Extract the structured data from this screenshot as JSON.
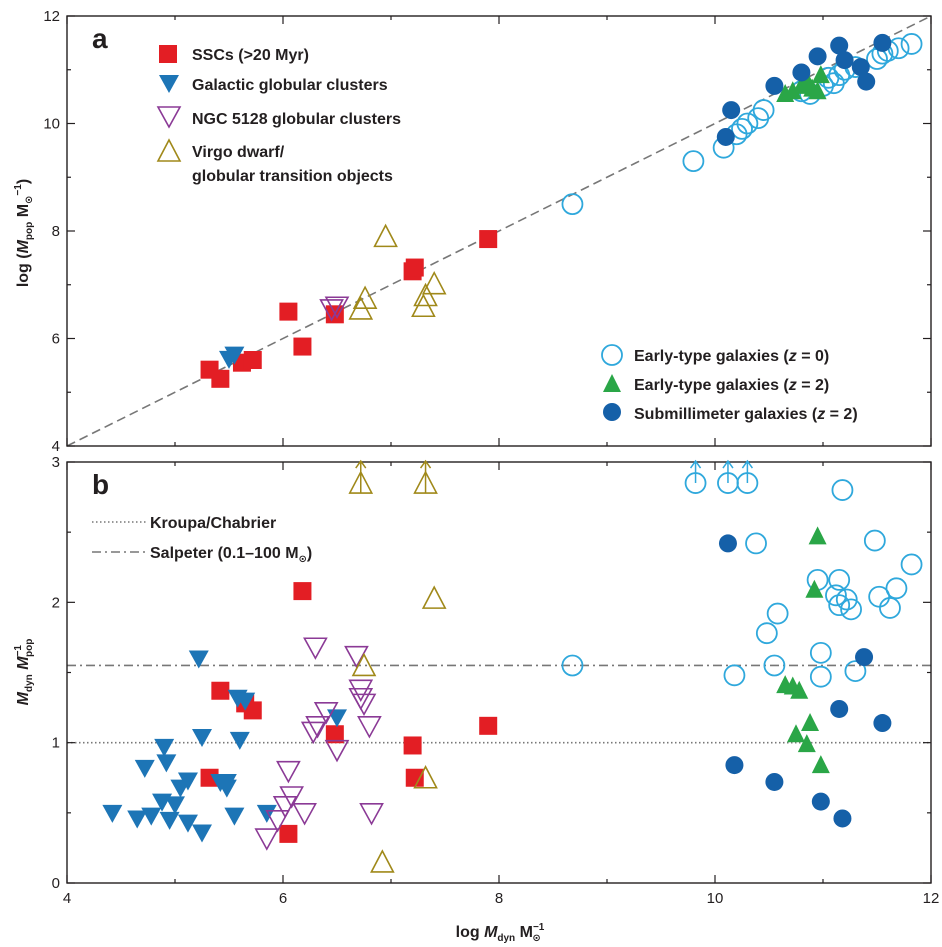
{
  "colors": {
    "ssc": "#e31e24",
    "galactic_gc": "#1d75b6",
    "ngc5128_gc": "#8b3a96",
    "virgo": "#a0891a",
    "early_z0": "#2fa8dc",
    "early_z2": "#2aa647",
    "submm": "#1560a8",
    "axis": "#231f20",
    "guide": "#777777"
  },
  "chart_data": [
    {
      "panel": "a",
      "type": "scatter",
      "xlim": [
        4,
        12
      ],
      "ylim": [
        4,
        12
      ],
      "x_ticks": [
        "4",
        "6",
        "8",
        "10",
        "12"
      ],
      "y_ticks": [
        "4",
        "6",
        "8",
        "10",
        "12"
      ],
      "reference_line": {
        "style": "dashed",
        "from": [
          4,
          4
        ],
        "to": [
          12,
          12
        ]
      },
      "legend_left": [
        {
          "id": "ssc",
          "label": "SSCs (>20 Myr)"
        },
        {
          "id": "galactic_gc",
          "label": "Galactic globular clusters"
        },
        {
          "id": "ngc5128_gc",
          "label": "NGC 5128 globular clusters"
        },
        {
          "id": "virgo",
          "label": "Virgo dwarf/",
          "label2": "globular transition objects"
        }
      ],
      "legend_right": [
        {
          "id": "early_z0",
          "label": "Early-type galaxies (",
          "label_z": "z",
          "label_end": " = 0)"
        },
        {
          "id": "early_z2",
          "label": "Early-type galaxies (",
          "label_z": "z",
          "label_end": " = 2)"
        },
        {
          "id": "submm",
          "label": "Submillimeter galaxies (",
          "label_z": "z",
          "label_end": " = 2)"
        }
      ],
      "series": [
        {
          "id": "ssc",
          "marker": "square",
          "points": [
            [
              5.32,
              5.42
            ],
            [
              5.42,
              5.25
            ],
            [
              5.62,
              5.55
            ],
            [
              5.72,
              5.6
            ],
            [
              6.05,
              6.5
            ],
            [
              6.18,
              5.85
            ],
            [
              6.48,
              6.45
            ],
            [
              7.2,
              7.25
            ],
            [
              7.22,
              7.32
            ],
            [
              7.9,
              7.85
            ]
          ]
        },
        {
          "id": "galactic_gc",
          "marker": "triangle-down",
          "points": [
            [
              5.5,
              5.62
            ],
            [
              5.55,
              5.7
            ]
          ]
        },
        {
          "id": "ngc5128_gc",
          "marker": "triangle-down-open",
          "points": [
            [
              6.45,
              6.55
            ],
            [
              6.5,
              6.6
            ]
          ]
        },
        {
          "id": "virgo",
          "marker": "triangle-up-open",
          "points": [
            [
              6.72,
              6.55
            ],
            [
              6.76,
              6.75
            ],
            [
              6.95,
              7.9
            ],
            [
              7.3,
              6.6
            ],
            [
              7.32,
              6.8
            ],
            [
              7.4,
              7.02
            ]
          ]
        },
        {
          "id": "early_z0",
          "marker": "circle-open",
          "points": [
            [
              8.68,
              8.5
            ],
            [
              9.8,
              9.3
            ],
            [
              10.08,
              9.55
            ],
            [
              10.2,
              9.8
            ],
            [
              10.25,
              9.9
            ],
            [
              10.3,
              10.0
            ],
            [
              10.4,
              10.1
            ],
            [
              10.45,
              10.25
            ],
            [
              10.8,
              10.6
            ],
            [
              10.88,
              10.55
            ],
            [
              11.0,
              10.7
            ],
            [
              11.05,
              10.85
            ],
            [
              11.1,
              10.75
            ],
            [
              11.15,
              10.9
            ],
            [
              11.2,
              11.0
            ],
            [
              11.3,
              11.05
            ],
            [
              11.5,
              11.2
            ],
            [
              11.55,
              11.3
            ],
            [
              11.6,
              11.35
            ],
            [
              11.7,
              11.4
            ],
            [
              11.82,
              11.48
            ]
          ]
        },
        {
          "id": "early_z2",
          "marker": "triangle-up",
          "points": [
            [
              10.65,
              10.55
            ],
            [
              10.72,
              10.6
            ],
            [
              10.8,
              10.7
            ],
            [
              10.85,
              10.8
            ],
            [
              10.9,
              10.65
            ],
            [
              10.95,
              10.6
            ],
            [
              10.98,
              10.9
            ]
          ]
        },
        {
          "id": "submm",
          "marker": "circle",
          "points": [
            [
              10.1,
              9.75
            ],
            [
              10.15,
              10.25
            ],
            [
              10.55,
              10.7
            ],
            [
              10.8,
              10.95
            ],
            [
              10.95,
              11.25
            ],
            [
              11.15,
              11.45
            ],
            [
              11.2,
              11.18
            ],
            [
              11.35,
              11.05
            ],
            [
              11.4,
              10.78
            ],
            [
              11.55,
              11.5
            ]
          ]
        }
      ]
    },
    {
      "panel": "b",
      "type": "scatter",
      "xlim": [
        4,
        12
      ],
      "ylim": [
        0,
        3
      ],
      "x_ticks": [
        "4",
        "6",
        "8",
        "10",
        "12"
      ],
      "y_ticks": [
        "0",
        "1",
        "2",
        "3"
      ],
      "reference_lines": [
        {
          "id": "kroupa",
          "label": "Kroupa/Chabrier",
          "style": "dotted",
          "y": 1.0
        },
        {
          "id": "salpeter",
          "label": "Salpeter (0.1–100 M",
          "label_suffix": ")",
          "style": "dashdot",
          "y": 1.55
        }
      ],
      "series": [
        {
          "id": "ssc",
          "marker": "square",
          "points": [
            [
              5.32,
              0.75
            ],
            [
              5.42,
              1.37
            ],
            [
              5.65,
              1.28
            ],
            [
              5.72,
              1.23
            ],
            [
              6.05,
              0.35
            ],
            [
              6.18,
              2.08
            ],
            [
              6.48,
              1.06
            ],
            [
              7.2,
              0.98
            ],
            [
              7.22,
              0.75
            ],
            [
              7.9,
              1.12
            ]
          ]
        },
        {
          "id": "galactic_gc",
          "marker": "triangle-down",
          "points": [
            [
              4.42,
              0.5
            ],
            [
              4.65,
              0.46
            ],
            [
              4.72,
              0.82
            ],
            [
              4.78,
              0.48
            ],
            [
              4.88,
              0.58
            ],
            [
              4.9,
              0.97
            ],
            [
              4.92,
              0.86
            ],
            [
              4.95,
              0.45
            ],
            [
              5.0,
              0.56
            ],
            [
              5.05,
              0.68
            ],
            [
              5.12,
              0.43
            ],
            [
              5.12,
              0.73
            ],
            [
              5.22,
              1.6
            ],
            [
              5.25,
              0.36
            ],
            [
              5.25,
              1.04
            ],
            [
              5.42,
              0.72
            ],
            [
              5.48,
              0.68
            ],
            [
              5.48,
              0.72
            ],
            [
              5.55,
              0.48
            ],
            [
              5.58,
              1.32
            ],
            [
              5.6,
              1.02
            ],
            [
              5.65,
              1.3
            ],
            [
              5.85,
              0.5
            ],
            [
              6.5,
              1.18
            ]
          ]
        },
        {
          "id": "ngc5128_gc",
          "marker": "triangle-down-open",
          "points": [
            [
              5.85,
              0.32
            ],
            [
              5.95,
              0.45
            ],
            [
              6.02,
              0.55
            ],
            [
              6.05,
              0.8
            ],
            [
              6.08,
              0.62
            ],
            [
              6.2,
              0.5
            ],
            [
              6.28,
              1.08
            ],
            [
              6.3,
              1.68
            ],
            [
              6.32,
              1.12
            ],
            [
              6.4,
              1.22
            ],
            [
              6.5,
              0.95
            ],
            [
              6.68,
              1.62
            ],
            [
              6.72,
              1.32
            ],
            [
              6.72,
              1.38
            ],
            [
              6.75,
              1.28
            ],
            [
              6.8,
              1.12
            ],
            [
              6.82,
              0.5
            ]
          ]
        },
        {
          "id": "virgo",
          "marker": "triangle-up-open",
          "points": [
            [
              6.75,
              1.55
            ],
            [
              6.92,
              0.15
            ],
            [
              7.32,
              0.75
            ],
            [
              7.4,
              2.03
            ]
          ]
        },
        {
          "id": "virgo_lower_limits",
          "marker": "triangle-up-open-arrow",
          "points": [
            [
              6.72,
              2.85
            ],
            [
              7.32,
              2.85
            ]
          ]
        },
        {
          "id": "early_z0",
          "marker": "circle-open",
          "points": [
            [
              8.68,
              1.55
            ],
            [
              10.18,
              1.48
            ],
            [
              10.38,
              2.42
            ],
            [
              10.48,
              1.78
            ],
            [
              10.55,
              1.55
            ],
            [
              10.58,
              1.92
            ],
            [
              10.95,
              2.16
            ],
            [
              10.98,
              1.64
            ],
            [
              10.98,
              1.47
            ],
            [
              11.12,
              2.05
            ],
            [
              11.15,
              2.16
            ],
            [
              11.15,
              1.98
            ],
            [
              11.18,
              2.8
            ],
            [
              11.22,
              2.02
            ],
            [
              11.26,
              1.95
            ],
            [
              11.3,
              1.51
            ],
            [
              11.48,
              2.44
            ],
            [
              11.52,
              2.04
            ],
            [
              11.62,
              1.96
            ],
            [
              11.68,
              2.1
            ],
            [
              11.82,
              2.27
            ]
          ]
        },
        {
          "id": "early_z0_lower_limits",
          "marker": "circle-open-arrow",
          "points": [
            [
              9.82,
              2.85
            ],
            [
              10.12,
              2.85
            ],
            [
              10.3,
              2.85
            ]
          ]
        },
        {
          "id": "early_z2",
          "marker": "triangle-up",
          "points": [
            [
              10.65,
              1.41
            ],
            [
              10.72,
              1.4
            ],
            [
              10.75,
              1.06
            ],
            [
              10.78,
              1.37
            ],
            [
              10.85,
              0.99
            ],
            [
              10.88,
              1.14
            ],
            [
              10.92,
              2.09
            ],
            [
              10.95,
              2.47
            ],
            [
              10.98,
              0.84
            ]
          ]
        },
        {
          "id": "submm",
          "marker": "circle",
          "points": [
            [
              10.12,
              2.42
            ],
            [
              10.18,
              0.84
            ],
            [
              10.55,
              0.72
            ],
            [
              10.98,
              0.58
            ],
            [
              11.15,
              1.24
            ],
            [
              11.18,
              0.46
            ],
            [
              11.38,
              1.61
            ],
            [
              11.55,
              1.14
            ]
          ]
        }
      ]
    }
  ],
  "axes": {
    "a_ylabel": {
      "pre": "log (",
      "M": "M",
      "sub": "pop",
      "sp": " M",
      "inv": "−1",
      "post": ")"
    },
    "b_ylabel": {
      "M1": "M",
      "sub1": "dyn",
      "sp": " ",
      "M2": "M",
      "sub2": "pop",
      "inv": "−1"
    },
    "xlabel": {
      "pre": "log ",
      "M": "M",
      "sub": "dyn",
      "sp": " M",
      "inv": "−1"
    },
    "sun_symbol": "⊙"
  }
}
